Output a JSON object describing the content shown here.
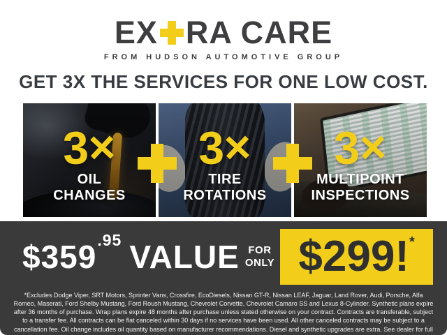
{
  "brand": {
    "logo_part1": "EX",
    "logo_plus": "+",
    "logo_part2": "RA CARE",
    "tagline": "FROM HUDSON AUTOMOTIVE GROUP"
  },
  "headline": "GET 3X THE SERVICES FOR ONE LOW COST.",
  "services": [
    {
      "multiplier": "3×",
      "label_line1": "OIL",
      "label_line2": "CHANGES",
      "photo": "oil-pour-photo"
    },
    {
      "multiplier": "3×",
      "label_line1": "TIRE",
      "label_line2": "ROTATIONS",
      "photo": "tire-photo"
    },
    {
      "multiplier": "3×",
      "label_line1": "MULTIPOINT",
      "label_line2": "INSPECTIONS",
      "photo": "laptop-inspection-photo"
    }
  ],
  "pricing": {
    "value_price": "$359",
    "value_cents": ".95",
    "value_label": "VALUE",
    "for_word": "FOR",
    "only_word": "ONLY",
    "sale_price": "$299!",
    "asterisk": "*"
  },
  "disclaimer": "*Excludes Dodge Viper, SRT Motors, Sprinter Vans, Crossfire, EcoDiesels, Nissan GT-R, Nissan LEAF, Jaguar, Land Rover, Audi, Porsche, Alfa Romeo, Maserati, Ford Shelby Mustang, Ford Roush Mustang, Chevrolet Corvette, Chevrolet Camaro SS and Lexus 8-Cylinder. Synthetic plans expire after 36 months of purchase. Wrap plans expire 48 months after purchase unless stated otherwise on your contract. Contracts are transferable, subject to a transfer fee. All contracts can be flat canceled within 30 days if no services have been used. All other canceled contracts may be subject to a cancellation fee. Oil change includes oil quantity based on manufacturer recommendations. Diesel and synthetic upgrades are extra. See dealer for full details.",
  "colors": {
    "yellow": "#F2CE1B",
    "charcoal_band": "#3A3A3A",
    "dark_text": "#3E3E40",
    "white": "#FFFFFF"
  }
}
